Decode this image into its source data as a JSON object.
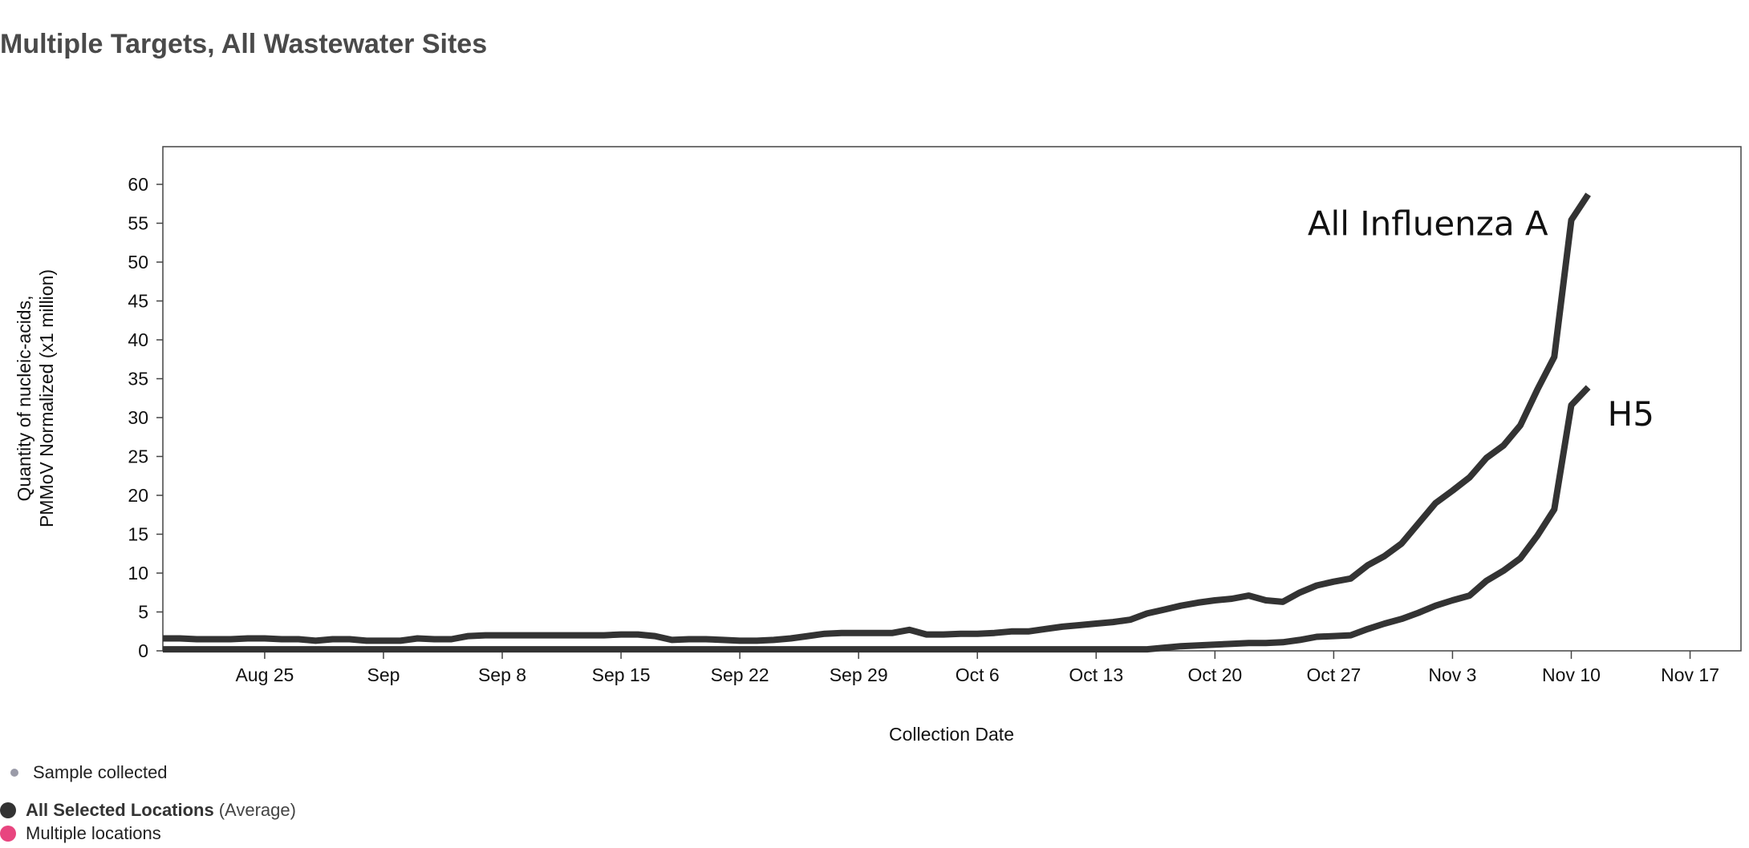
{
  "page": {
    "title": "Multiple Targets, All Wastewater Sites"
  },
  "chart_data": {
    "type": "line",
    "title": "Multiple Targets, All Wastewater Sites",
    "xlabel": "Collection Date",
    "ylabel_lines": [
      "Quantity of nucleic-acids,",
      "PMMoV Normalized (x1 million)"
    ],
    "xlim": [
      "2024-08-19",
      "2024-11-20"
    ],
    "ylim": [
      0,
      63
    ],
    "yticks": [
      0,
      5,
      10,
      15,
      20,
      25,
      30,
      35,
      40,
      45,
      50,
      55,
      60
    ],
    "xticks": [
      {
        "date": "2024-08-25",
        "label": "Aug 25"
      },
      {
        "date": "2024-09-01",
        "label": "Sep"
      },
      {
        "date": "2024-09-08",
        "label": "Sep 8"
      },
      {
        "date": "2024-09-15",
        "label": "Sep 15"
      },
      {
        "date": "2024-09-22",
        "label": "Sep 22"
      },
      {
        "date": "2024-09-29",
        "label": "Sep 29"
      },
      {
        "date": "2024-10-06",
        "label": "Oct 6"
      },
      {
        "date": "2024-10-13",
        "label": "Oct 13"
      },
      {
        "date": "2024-10-20",
        "label": "Oct 20"
      },
      {
        "date": "2024-10-27",
        "label": "Oct 27"
      },
      {
        "date": "2024-11-03",
        "label": "Nov 3"
      },
      {
        "date": "2024-11-10",
        "label": "Nov 10"
      },
      {
        "date": "2024-11-17",
        "label": "Nov 17"
      }
    ],
    "grid": false,
    "line_color": "#333333",
    "series": [
      {
        "label": "All Influenza A",
        "points": [
          [
            "2024-08-19",
            1.6
          ],
          [
            "2024-08-20",
            1.6
          ],
          [
            "2024-08-21",
            1.5
          ],
          [
            "2024-08-22",
            1.5
          ],
          [
            "2024-08-23",
            1.5
          ],
          [
            "2024-08-24",
            1.6
          ],
          [
            "2024-08-25",
            1.6
          ],
          [
            "2024-08-26",
            1.5
          ],
          [
            "2024-08-27",
            1.5
          ],
          [
            "2024-08-28",
            1.3
          ],
          [
            "2024-08-29",
            1.5
          ],
          [
            "2024-08-30",
            1.5
          ],
          [
            "2024-08-31",
            1.3
          ],
          [
            "2024-09-01",
            1.3
          ],
          [
            "2024-09-02",
            1.3
          ],
          [
            "2024-09-03",
            1.6
          ],
          [
            "2024-09-04",
            1.5
          ],
          [
            "2024-09-05",
            1.5
          ],
          [
            "2024-09-06",
            1.9
          ],
          [
            "2024-09-07",
            2.0
          ],
          [
            "2024-09-08",
            2.0
          ],
          [
            "2024-09-09",
            2.0
          ],
          [
            "2024-09-10",
            2.0
          ],
          [
            "2024-09-11",
            2.0
          ],
          [
            "2024-09-12",
            2.0
          ],
          [
            "2024-09-13",
            2.0
          ],
          [
            "2024-09-14",
            2.0
          ],
          [
            "2024-09-15",
            2.1
          ],
          [
            "2024-09-16",
            2.1
          ],
          [
            "2024-09-17",
            1.9
          ],
          [
            "2024-09-18",
            1.4
          ],
          [
            "2024-09-19",
            1.5
          ],
          [
            "2024-09-20",
            1.5
          ],
          [
            "2024-09-21",
            1.4
          ],
          [
            "2024-09-22",
            1.3
          ],
          [
            "2024-09-23",
            1.3
          ],
          [
            "2024-09-24",
            1.4
          ],
          [
            "2024-09-25",
            1.6
          ],
          [
            "2024-09-26",
            1.9
          ],
          [
            "2024-09-27",
            2.2
          ],
          [
            "2024-09-28",
            2.3
          ],
          [
            "2024-09-29",
            2.3
          ],
          [
            "2024-09-30",
            2.3
          ],
          [
            "2024-10-01",
            2.3
          ],
          [
            "2024-10-02",
            2.7
          ],
          [
            "2024-10-03",
            2.1
          ],
          [
            "2024-10-04",
            2.1
          ],
          [
            "2024-10-05",
            2.2
          ],
          [
            "2024-10-06",
            2.2
          ],
          [
            "2024-10-07",
            2.3
          ],
          [
            "2024-10-08",
            2.5
          ],
          [
            "2024-10-09",
            2.5
          ],
          [
            "2024-10-10",
            2.8
          ],
          [
            "2024-10-11",
            3.1
          ],
          [
            "2024-10-12",
            3.3
          ],
          [
            "2024-10-13",
            3.5
          ],
          [
            "2024-10-14",
            3.7
          ],
          [
            "2024-10-15",
            4.0
          ],
          [
            "2024-10-16",
            4.8
          ],
          [
            "2024-10-17",
            5.3
          ],
          [
            "2024-10-18",
            5.8
          ],
          [
            "2024-10-19",
            6.2
          ],
          [
            "2024-10-20",
            6.5
          ],
          [
            "2024-10-21",
            6.7
          ],
          [
            "2024-10-22",
            7.1
          ],
          [
            "2024-10-23",
            6.5
          ],
          [
            "2024-10-24",
            6.3
          ],
          [
            "2024-10-25",
            7.5
          ],
          [
            "2024-10-26",
            8.4
          ],
          [
            "2024-10-27",
            8.9
          ],
          [
            "2024-10-28",
            9.3
          ],
          [
            "2024-10-29",
            11.0
          ],
          [
            "2024-10-30",
            12.2
          ],
          [
            "2024-10-31",
            13.8
          ],
          [
            "2024-11-01",
            16.4
          ],
          [
            "2024-11-02",
            19.0
          ],
          [
            "2024-11-03",
            20.6
          ],
          [
            "2024-11-04",
            22.3
          ],
          [
            "2024-11-05",
            24.8
          ],
          [
            "2024-11-06",
            26.4
          ],
          [
            "2024-11-07",
            29.0
          ],
          [
            "2024-11-08",
            33.6
          ],
          [
            "2024-11-09",
            37.8
          ],
          [
            "2024-11-10",
            55.4
          ],
          [
            "2024-11-11",
            58.7
          ]
        ]
      },
      {
        "label": "H5",
        "points": [
          [
            "2024-08-19",
            0.2
          ],
          [
            "2024-09-01",
            0.2
          ],
          [
            "2024-09-15",
            0.2
          ],
          [
            "2024-09-29",
            0.2
          ],
          [
            "2024-10-06",
            0.2
          ],
          [
            "2024-10-13",
            0.2
          ],
          [
            "2024-10-16",
            0.2
          ],
          [
            "2024-10-17",
            0.4
          ],
          [
            "2024-10-18",
            0.6
          ],
          [
            "2024-10-19",
            0.7
          ],
          [
            "2024-10-20",
            0.8
          ],
          [
            "2024-10-21",
            0.9
          ],
          [
            "2024-10-22",
            1.0
          ],
          [
            "2024-10-23",
            1.0
          ],
          [
            "2024-10-24",
            1.1
          ],
          [
            "2024-10-25",
            1.4
          ],
          [
            "2024-10-26",
            1.8
          ],
          [
            "2024-10-27",
            1.9
          ],
          [
            "2024-10-28",
            2.0
          ],
          [
            "2024-10-29",
            2.8
          ],
          [
            "2024-10-30",
            3.5
          ],
          [
            "2024-10-31",
            4.1
          ],
          [
            "2024-11-01",
            4.9
          ],
          [
            "2024-11-02",
            5.8
          ],
          [
            "2024-11-03",
            6.5
          ],
          [
            "2024-11-04",
            7.1
          ],
          [
            "2024-11-05",
            9.0
          ],
          [
            "2024-11-06",
            10.3
          ],
          [
            "2024-11-07",
            11.9
          ],
          [
            "2024-11-08",
            14.8
          ],
          [
            "2024-11-09",
            18.2
          ],
          [
            "2024-11-10",
            31.6
          ],
          [
            "2024-11-11",
            33.9
          ]
        ]
      }
    ],
    "annotations": [
      {
        "text": "All Influenza A",
        "series": "All Influenza A"
      },
      {
        "text": "H5",
        "series": "H5"
      }
    ]
  },
  "legend": {
    "sample_collected": "Sample collected",
    "sample_color": "#9a9ba8",
    "all_locations_bold": "All Selected Locations",
    "all_locations_suffix": "(Average)",
    "all_locations_color": "#333333",
    "multiple_locations": "Multiple locations",
    "multiple_locations_color": "#e8457f"
  }
}
